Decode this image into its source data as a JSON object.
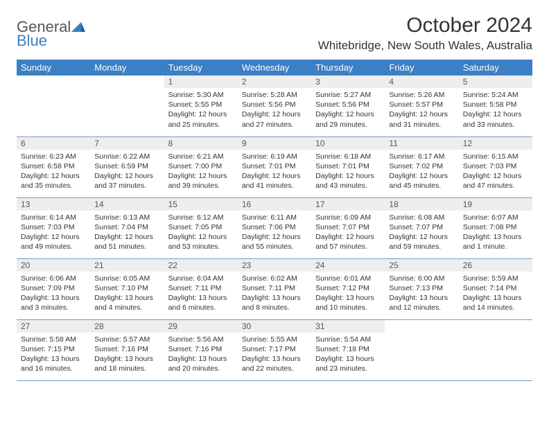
{
  "logo": {
    "part1": "General",
    "part2": "Blue"
  },
  "title": "October 2024",
  "location": "Whitebridge, New South Wales, Australia",
  "colors": {
    "header_bg": "#3b7fc4",
    "header_text": "#ffffff",
    "daynum_bg": "#eeeeee",
    "border": "#7a9bbd",
    "logo_accent": "#3b7fc4"
  },
  "weekdays": [
    "Sunday",
    "Monday",
    "Tuesday",
    "Wednesday",
    "Thursday",
    "Friday",
    "Saturday"
  ],
  "weeks": [
    [
      {
        "n": "",
        "sr": "",
        "ss": "",
        "dl": "",
        "empty": true
      },
      {
        "n": "",
        "sr": "",
        "ss": "",
        "dl": "",
        "empty": true
      },
      {
        "n": "1",
        "sr": "Sunrise: 5:30 AM",
        "ss": "Sunset: 5:55 PM",
        "dl": "Daylight: 12 hours and 25 minutes."
      },
      {
        "n": "2",
        "sr": "Sunrise: 5:28 AM",
        "ss": "Sunset: 5:56 PM",
        "dl": "Daylight: 12 hours and 27 minutes."
      },
      {
        "n": "3",
        "sr": "Sunrise: 5:27 AM",
        "ss": "Sunset: 5:56 PM",
        "dl": "Daylight: 12 hours and 29 minutes."
      },
      {
        "n": "4",
        "sr": "Sunrise: 5:26 AM",
        "ss": "Sunset: 5:57 PM",
        "dl": "Daylight: 12 hours and 31 minutes."
      },
      {
        "n": "5",
        "sr": "Sunrise: 5:24 AM",
        "ss": "Sunset: 5:58 PM",
        "dl": "Daylight: 12 hours and 33 minutes."
      }
    ],
    [
      {
        "n": "6",
        "sr": "Sunrise: 6:23 AM",
        "ss": "Sunset: 6:58 PM",
        "dl": "Daylight: 12 hours and 35 minutes."
      },
      {
        "n": "7",
        "sr": "Sunrise: 6:22 AM",
        "ss": "Sunset: 6:59 PM",
        "dl": "Daylight: 12 hours and 37 minutes."
      },
      {
        "n": "8",
        "sr": "Sunrise: 6:21 AM",
        "ss": "Sunset: 7:00 PM",
        "dl": "Daylight: 12 hours and 39 minutes."
      },
      {
        "n": "9",
        "sr": "Sunrise: 6:19 AM",
        "ss": "Sunset: 7:01 PM",
        "dl": "Daylight: 12 hours and 41 minutes."
      },
      {
        "n": "10",
        "sr": "Sunrise: 6:18 AM",
        "ss": "Sunset: 7:01 PM",
        "dl": "Daylight: 12 hours and 43 minutes."
      },
      {
        "n": "11",
        "sr": "Sunrise: 6:17 AM",
        "ss": "Sunset: 7:02 PM",
        "dl": "Daylight: 12 hours and 45 minutes."
      },
      {
        "n": "12",
        "sr": "Sunrise: 6:15 AM",
        "ss": "Sunset: 7:03 PM",
        "dl": "Daylight: 12 hours and 47 minutes."
      }
    ],
    [
      {
        "n": "13",
        "sr": "Sunrise: 6:14 AM",
        "ss": "Sunset: 7:03 PM",
        "dl": "Daylight: 12 hours and 49 minutes."
      },
      {
        "n": "14",
        "sr": "Sunrise: 6:13 AM",
        "ss": "Sunset: 7:04 PM",
        "dl": "Daylight: 12 hours and 51 minutes."
      },
      {
        "n": "15",
        "sr": "Sunrise: 6:12 AM",
        "ss": "Sunset: 7:05 PM",
        "dl": "Daylight: 12 hours and 53 minutes."
      },
      {
        "n": "16",
        "sr": "Sunrise: 6:11 AM",
        "ss": "Sunset: 7:06 PM",
        "dl": "Daylight: 12 hours and 55 minutes."
      },
      {
        "n": "17",
        "sr": "Sunrise: 6:09 AM",
        "ss": "Sunset: 7:07 PM",
        "dl": "Daylight: 12 hours and 57 minutes."
      },
      {
        "n": "18",
        "sr": "Sunrise: 6:08 AM",
        "ss": "Sunset: 7:07 PM",
        "dl": "Daylight: 12 hours and 59 minutes."
      },
      {
        "n": "19",
        "sr": "Sunrise: 6:07 AM",
        "ss": "Sunset: 7:08 PM",
        "dl": "Daylight: 13 hours and 1 minute."
      }
    ],
    [
      {
        "n": "20",
        "sr": "Sunrise: 6:06 AM",
        "ss": "Sunset: 7:09 PM",
        "dl": "Daylight: 13 hours and 3 minutes."
      },
      {
        "n": "21",
        "sr": "Sunrise: 6:05 AM",
        "ss": "Sunset: 7:10 PM",
        "dl": "Daylight: 13 hours and 4 minutes."
      },
      {
        "n": "22",
        "sr": "Sunrise: 6:04 AM",
        "ss": "Sunset: 7:11 PM",
        "dl": "Daylight: 13 hours and 6 minutes."
      },
      {
        "n": "23",
        "sr": "Sunrise: 6:02 AM",
        "ss": "Sunset: 7:11 PM",
        "dl": "Daylight: 13 hours and 8 minutes."
      },
      {
        "n": "24",
        "sr": "Sunrise: 6:01 AM",
        "ss": "Sunset: 7:12 PM",
        "dl": "Daylight: 13 hours and 10 minutes."
      },
      {
        "n": "25",
        "sr": "Sunrise: 6:00 AM",
        "ss": "Sunset: 7:13 PM",
        "dl": "Daylight: 13 hours and 12 minutes."
      },
      {
        "n": "26",
        "sr": "Sunrise: 5:59 AM",
        "ss": "Sunset: 7:14 PM",
        "dl": "Daylight: 13 hours and 14 minutes."
      }
    ],
    [
      {
        "n": "27",
        "sr": "Sunrise: 5:58 AM",
        "ss": "Sunset: 7:15 PM",
        "dl": "Daylight: 13 hours and 16 minutes."
      },
      {
        "n": "28",
        "sr": "Sunrise: 5:57 AM",
        "ss": "Sunset: 7:16 PM",
        "dl": "Daylight: 13 hours and 18 minutes."
      },
      {
        "n": "29",
        "sr": "Sunrise: 5:56 AM",
        "ss": "Sunset: 7:16 PM",
        "dl": "Daylight: 13 hours and 20 minutes."
      },
      {
        "n": "30",
        "sr": "Sunrise: 5:55 AM",
        "ss": "Sunset: 7:17 PM",
        "dl": "Daylight: 13 hours and 22 minutes."
      },
      {
        "n": "31",
        "sr": "Sunrise: 5:54 AM",
        "ss": "Sunset: 7:18 PM",
        "dl": "Daylight: 13 hours and 23 minutes."
      },
      {
        "n": "",
        "sr": "",
        "ss": "",
        "dl": "",
        "empty": true
      },
      {
        "n": "",
        "sr": "",
        "ss": "",
        "dl": "",
        "empty": true
      }
    ]
  ]
}
